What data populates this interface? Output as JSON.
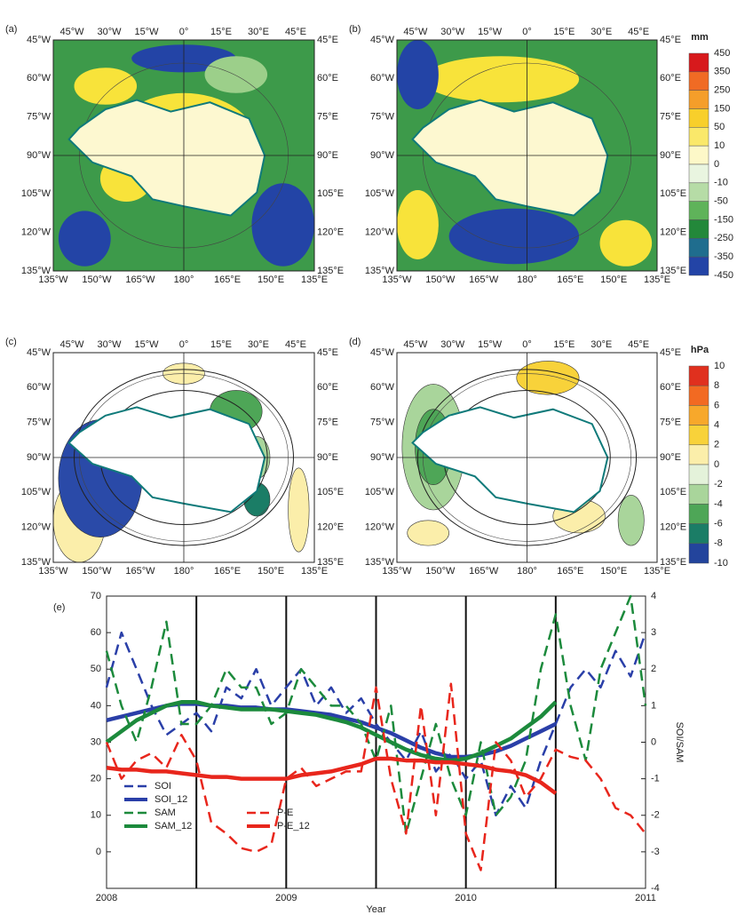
{
  "panels": [
    {
      "label": "(a)"
    },
    {
      "label": "(b)"
    },
    {
      "label": "(c)"
    },
    {
      "label": "(d)"
    }
  ],
  "map_axes": {
    "top": [
      "45°W",
      "30°W",
      "15°W",
      "0°",
      "15°E",
      "30°E",
      "45°E"
    ],
    "left": [
      "45°W",
      "60°W",
      "75°W",
      "90°W",
      "105°W",
      "120°W",
      "135°W"
    ],
    "right": [
      "45°E",
      "60°E",
      "75°E",
      "90°E",
      "105°E",
      "120°E",
      "135°E"
    ],
    "bottom": [
      "135°W",
      "150°W",
      "165°W",
      "180°",
      "165°E",
      "150°E",
      "135°E"
    ]
  },
  "colorbars": [
    {
      "title": "mm",
      "ticks": [
        450,
        350,
        250,
        150,
        50,
        10,
        0,
        -10,
        -50,
        -150,
        -250,
        -350,
        -450
      ],
      "colors": [
        "#d7191c",
        "#f06b24",
        "#f59e2a",
        "#f8cf2b",
        "#fae86a",
        "#fdf8c8",
        "#e9f5e0",
        "#b6dca6",
        "#5fb35a",
        "#23883a",
        "#1f6d8e",
        "#2344a6"
      ]
    },
    {
      "title": "hPa",
      "ticks": [
        10,
        8,
        6,
        4,
        2,
        0,
        -2,
        -4,
        -6,
        -8,
        -10
      ],
      "colors": [
        "#e0301e",
        "#f26a22",
        "#f7a82b",
        "#f8d23a",
        "#fbeeaa",
        "#e4f2da",
        "#a9d59b",
        "#4ea657",
        "#1b7d66",
        "#23449c"
      ]
    }
  ],
  "chart_data": {
    "type": "line",
    "title": "(e)",
    "x_label": "Year",
    "y2_label": "SOI/SAM",
    "xlim": [
      2008,
      2011
    ],
    "xticks": [
      2008,
      2009,
      2010,
      2011
    ],
    "ylim": [
      -10,
      70
    ],
    "yticks": [
      0,
      10,
      20,
      30,
      40,
      50,
      60,
      70
    ],
    "y2lim": [
      -4,
      4
    ],
    "y2ticks": [
      -4,
      -3,
      -2,
      -1,
      0,
      1,
      2,
      3,
      4
    ],
    "vlines": [
      2008.5,
      2009,
      2009.5,
      2010,
      2010.5
    ],
    "legend": "lower left",
    "x": [
      2008,
      2008.083,
      2008.167,
      2008.25,
      2008.333,
      2008.417,
      2008.5,
      2008.583,
      2008.667,
      2008.75,
      2008.833,
      2008.917,
      2009,
      2009.083,
      2009.167,
      2009.25,
      2009.333,
      2009.417,
      2009.5,
      2009.583,
      2009.667,
      2009.75,
      2009.833,
      2009.917,
      2010,
      2010.083,
      2010.167,
      2010.25,
      2010.333,
      2010.417,
      2010.5,
      2010.583,
      2010.667,
      2010.75,
      2010.833,
      2010.917,
      2011
    ],
    "series": [
      {
        "name": "SOI",
        "color": "#2a3fa8",
        "style": "dashed",
        "axis": "y2",
        "values": [
          1.5,
          3.0,
          2.0,
          1.0,
          0.2,
          0.5,
          0.8,
          0.3,
          1.5,
          1.2,
          2.0,
          1.0,
          1.5,
          2.0,
          1.0,
          1.5,
          0.8,
          1.2,
          0.5,
          0.0,
          -0.5,
          0.3,
          -0.8,
          -0.3,
          -1.0,
          -0.5,
          -2.0,
          -1.2,
          -1.8,
          -0.5,
          0.5,
          1.5,
          2.0,
          1.5,
          2.5,
          1.8,
          3.0
        ]
      },
      {
        "name": "SOI_12",
        "color": "#2a3fa8",
        "style": "solid",
        "axis": "y2",
        "values": [
          0.6,
          0.7,
          0.8,
          0.9,
          1.0,
          1.05,
          1.05,
          1.0,
          1.0,
          0.95,
          0.95,
          0.9,
          0.9,
          0.85,
          0.8,
          0.75,
          0.65,
          0.55,
          0.4,
          0.25,
          0.05,
          -0.15,
          -0.3,
          -0.4,
          -0.4,
          -0.35,
          -0.25,
          -0.1,
          0.1,
          0.3,
          0.5,
          null,
          null,
          null,
          null,
          null,
          null
        ]
      },
      {
        "name": "SAM",
        "color": "#1c8a3c",
        "style": "dashed",
        "axis": "y2",
        "values": [
          2.5,
          1.0,
          0.0,
          1.5,
          3.3,
          0.5,
          0.5,
          1.0,
          2.0,
          1.5,
          1.5,
          0.5,
          0.8,
          2.0,
          1.5,
          1.0,
          1.0,
          0.5,
          -0.5,
          1.0,
          -2.5,
          -1.0,
          0.5,
          -1.0,
          -2.0,
          0.0,
          -2.0,
          -1.5,
          -0.5,
          2.0,
          3.5,
          1.0,
          -0.5,
          2.0,
          3.0,
          4.0,
          1.0
        ]
      },
      {
        "name": "SAM_12",
        "color": "#1c8a3c",
        "style": "solid",
        "axis": "y2",
        "values": [
          0.0,
          0.3,
          0.6,
          0.8,
          1.0,
          1.1,
          1.1,
          1.0,
          0.95,
          0.9,
          0.9,
          0.9,
          0.85,
          0.8,
          0.75,
          0.65,
          0.55,
          0.4,
          0.2,
          0.0,
          -0.2,
          -0.35,
          -0.45,
          -0.5,
          -0.45,
          -0.3,
          -0.1,
          0.1,
          0.4,
          0.7,
          1.1,
          null,
          null,
          null,
          null,
          null,
          null
        ]
      },
      {
        "name": "P-E",
        "color": "#e8261c",
        "style": "dashed",
        "values": [
          30,
          20,
          25,
          27,
          23,
          32,
          25,
          8,
          5,
          1,
          0,
          2,
          20,
          23,
          18,
          20,
          22,
          22,
          45,
          20,
          5,
          40,
          10,
          46,
          5,
          -5,
          30,
          25,
          15,
          20,
          28,
          26,
          25,
          20,
          12,
          10,
          5
        ]
      },
      {
        "name": "P-E_12",
        "color": "#e8261c",
        "style": "solid",
        "values": [
          23,
          22.5,
          22.5,
          22,
          22,
          21.5,
          21,
          20.5,
          20.5,
          20,
          20,
          20,
          20,
          21,
          21.5,
          22,
          23,
          24,
          25.5,
          25.5,
          25,
          25,
          24.5,
          24.5,
          24,
          23.5,
          22.5,
          22,
          21,
          19,
          16,
          null,
          null,
          null,
          null,
          null,
          null
        ]
      }
    ]
  }
}
